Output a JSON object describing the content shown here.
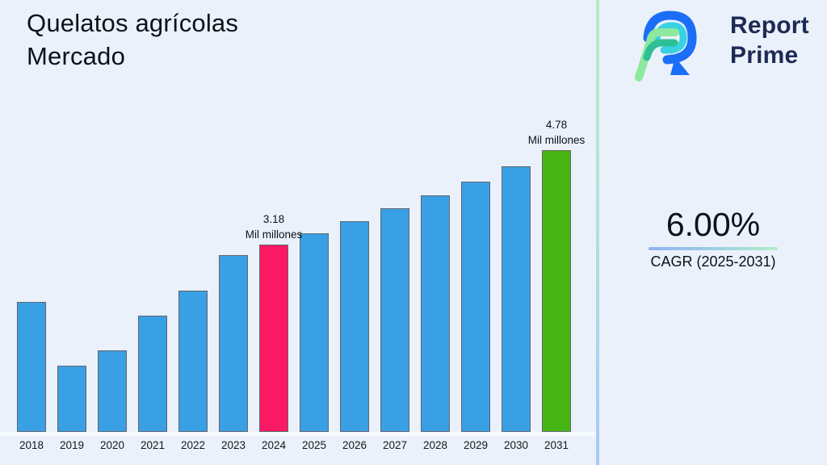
{
  "title": {
    "line1": "Quelatos agrícolas",
    "line2": "Mercado"
  },
  "logo": {
    "line1": "Report",
    "line2": "Prime"
  },
  "cagr": {
    "value": "6.00%",
    "label": "CAGR (2025-2031)"
  },
  "chart_data": {
    "type": "bar",
    "title": "Quelatos agrícolas Mercado",
    "xlabel": "",
    "ylabel": "",
    "unit": "Mil millones",
    "categories": [
      "2018",
      "2019",
      "2020",
      "2021",
      "2022",
      "2023",
      "2024",
      "2025",
      "2026",
      "2027",
      "2028",
      "2029",
      "2030",
      "2031"
    ],
    "values": [
      2.2,
      1.13,
      1.38,
      1.97,
      2.4,
      3.0,
      3.18,
      3.37,
      3.57,
      3.79,
      4.01,
      4.25,
      4.51,
      4.78
    ],
    "ylim": [
      0,
      5.2
    ],
    "grid": false,
    "legend": "none",
    "annotations": [
      {
        "year": "2024",
        "value_text": "3.18",
        "unit_text": "Mil millones"
      },
      {
        "year": "2031",
        "value_text": "4.78",
        "unit_text": "Mil millones"
      }
    ],
    "highlight": {
      "2024": "current",
      "2031": "forecast"
    },
    "colors": {
      "default": "#3aa0e6",
      "highlight_current": "#fa1a63",
      "highlight_forecast": "#46b513",
      "bar_border": "#60666d"
    }
  },
  "theme_colors": {
    "background": "#ebf1fa",
    "text": "#0d1219",
    "logo_navy": "#1d2a55",
    "logo_blue": "#1b6ef7",
    "logo_cyan": "#38d2e3",
    "logo_light_green": "#8ee89d",
    "logo_teal_green": "#2fbf95",
    "divider_top": "#b7ebc7",
    "divider_bottom": "#aac7f8"
  }
}
